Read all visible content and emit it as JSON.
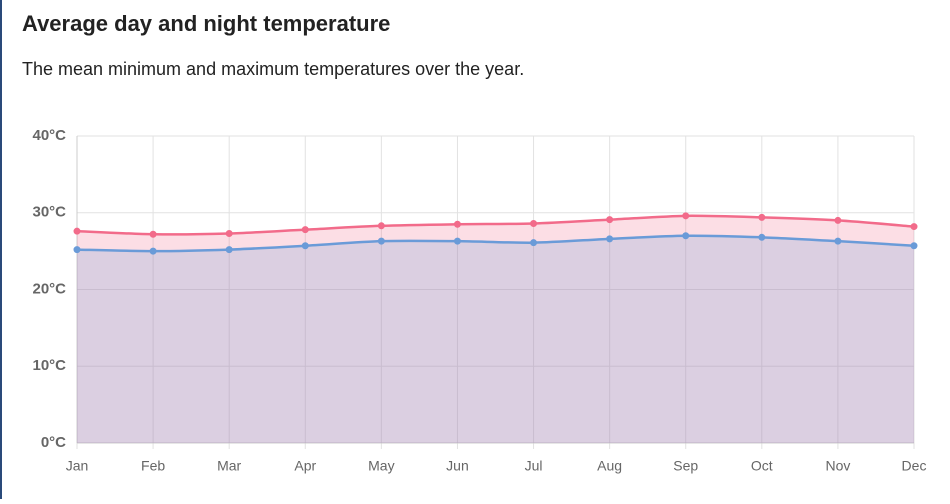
{
  "chart_data": {
    "type": "area",
    "title": "Average day and night temperature",
    "subtitle": "The mean minimum and maximum temperatures over the year.",
    "categories": [
      "Jan",
      "Feb",
      "Mar",
      "Apr",
      "May",
      "Jun",
      "Jul",
      "Aug",
      "Sep",
      "Oct",
      "Nov",
      "Dec"
    ],
    "series": [
      {
        "color": "#f26b8a",
        "values": [
          27.6,
          27.2,
          27.3,
          27.8,
          28.3,
          28.5,
          28.6,
          29.1,
          29.6,
          29.4,
          29.0,
          28.2
        ]
      },
      {
        "color": "#6a9bd8",
        "values": [
          25.2,
          25.0,
          25.2,
          25.7,
          26.3,
          26.3,
          26.1,
          26.6,
          27.0,
          26.8,
          26.3,
          25.7
        ]
      }
    ],
    "ylim": [
      0,
      40
    ],
    "yticks": [
      {
        "value": 0,
        "label": "0°C"
      },
      {
        "value": 10,
        "label": "10°C"
      },
      {
        "value": 20,
        "label": "20°C"
      },
      {
        "value": 30,
        "label": "30°C"
      },
      {
        "value": 40,
        "label": "40°C"
      }
    ],
    "grid": true
  }
}
